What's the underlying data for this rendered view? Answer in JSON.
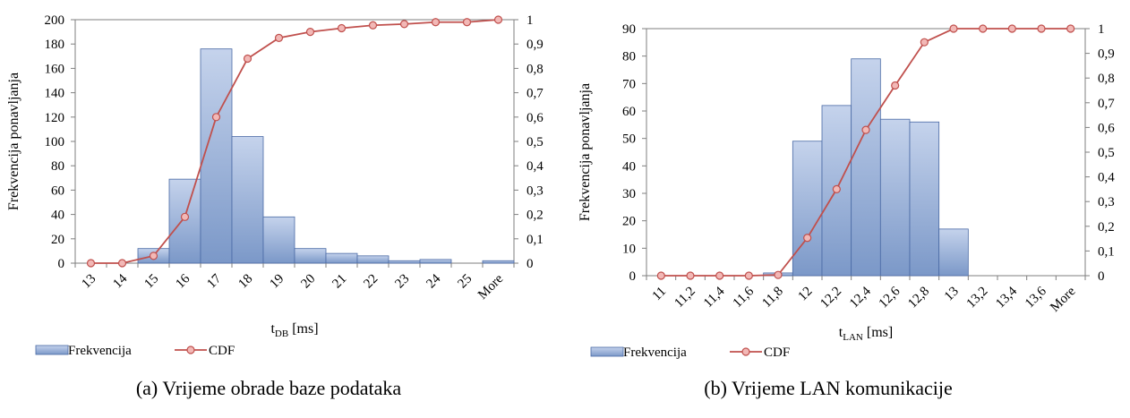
{
  "chart_data": [
    {
      "type": "bar",
      "categories": [
        "13",
        "14",
        "15",
        "16",
        "17",
        "18",
        "19",
        "20",
        "21",
        "22",
        "23",
        "24",
        "25",
        "More"
      ],
      "series": [
        {
          "name": "Frekvencija",
          "kind": "bar",
          "axis": "left",
          "values": [
            0,
            0,
            12,
            69,
            176,
            104,
            38,
            12,
            8,
            6,
            2,
            3,
            0,
            2
          ]
        },
        {
          "name": "CDF",
          "kind": "line",
          "axis": "right",
          "values": [
            0,
            0,
            0.03,
            0.19,
            0.6,
            0.84,
            0.925,
            0.95,
            0.965,
            0.977,
            0.982,
            0.99,
            0.99,
            1.0
          ]
        }
      ],
      "xlabel_main": "t",
      "xlabel_sub": "DB",
      "xlabel_tail": " [ms]",
      "ylabel": "Frekvencija  ponavljanja",
      "ylim": [
        0,
        200
      ],
      "yticks": [
        "0",
        "20",
        "40",
        "60",
        "80",
        "100",
        "120",
        "140",
        "160",
        "180",
        "200"
      ],
      "y2lim": [
        0,
        1
      ],
      "y2ticks": [
        "0",
        "0,1",
        "0,2",
        "0,3",
        "0,4",
        "0,5",
        "0,6",
        "0,7",
        "0,8",
        "0,9",
        "1"
      ],
      "legend_position": "bottom-left",
      "caption": "(a) Vrijeme obrade baze podataka"
    },
    {
      "type": "bar",
      "categories": [
        "11",
        "11,2",
        "11,4",
        "11,6",
        "11,8",
        "12",
        "12,2",
        "12,4",
        "12,6",
        "12,8",
        "13",
        "13,2",
        "13,4",
        "13,6",
        "More"
      ],
      "series": [
        {
          "name": "Frekvencija",
          "kind": "bar",
          "axis": "left",
          "values": [
            0,
            0,
            0,
            0,
            1,
            49,
            62,
            79,
            57,
            56,
            17,
            0,
            0,
            0,
            0
          ]
        },
        {
          "name": "CDF",
          "kind": "line",
          "axis": "right",
          "values": [
            0,
            0,
            0,
            0,
            0.003,
            0.153,
            0.35,
            0.59,
            0.77,
            0.945,
            1.0,
            1.0,
            1.0,
            1.0,
            1.0
          ]
        }
      ],
      "xlabel_main": "t",
      "xlabel_sub": "LAN",
      "xlabel_tail": " [ms]",
      "ylabel": "Frekvencija  ponavljanja",
      "ylim": [
        0,
        90
      ],
      "yticks": [
        "0",
        "10",
        "20",
        "30",
        "40",
        "50",
        "60",
        "70",
        "80",
        "90"
      ],
      "y2lim": [
        0,
        1
      ],
      "y2ticks": [
        "0",
        "0,1",
        "0,2",
        "0,3",
        "0,4",
        "0,5",
        "0,6",
        "0,7",
        "0,8",
        "0,9",
        "1"
      ],
      "legend_position": "bottom-left",
      "caption": "(b) Vrijeme LAN komunikacije"
    }
  ],
  "colors": {
    "bar_top": "#c5d3ec",
    "bar_bottom": "#7b98c8",
    "bar_edge": "#4a6aa5",
    "line": "#c0504d",
    "marker_fill": "#f2b8b6",
    "axis": "#7f7f7f"
  }
}
